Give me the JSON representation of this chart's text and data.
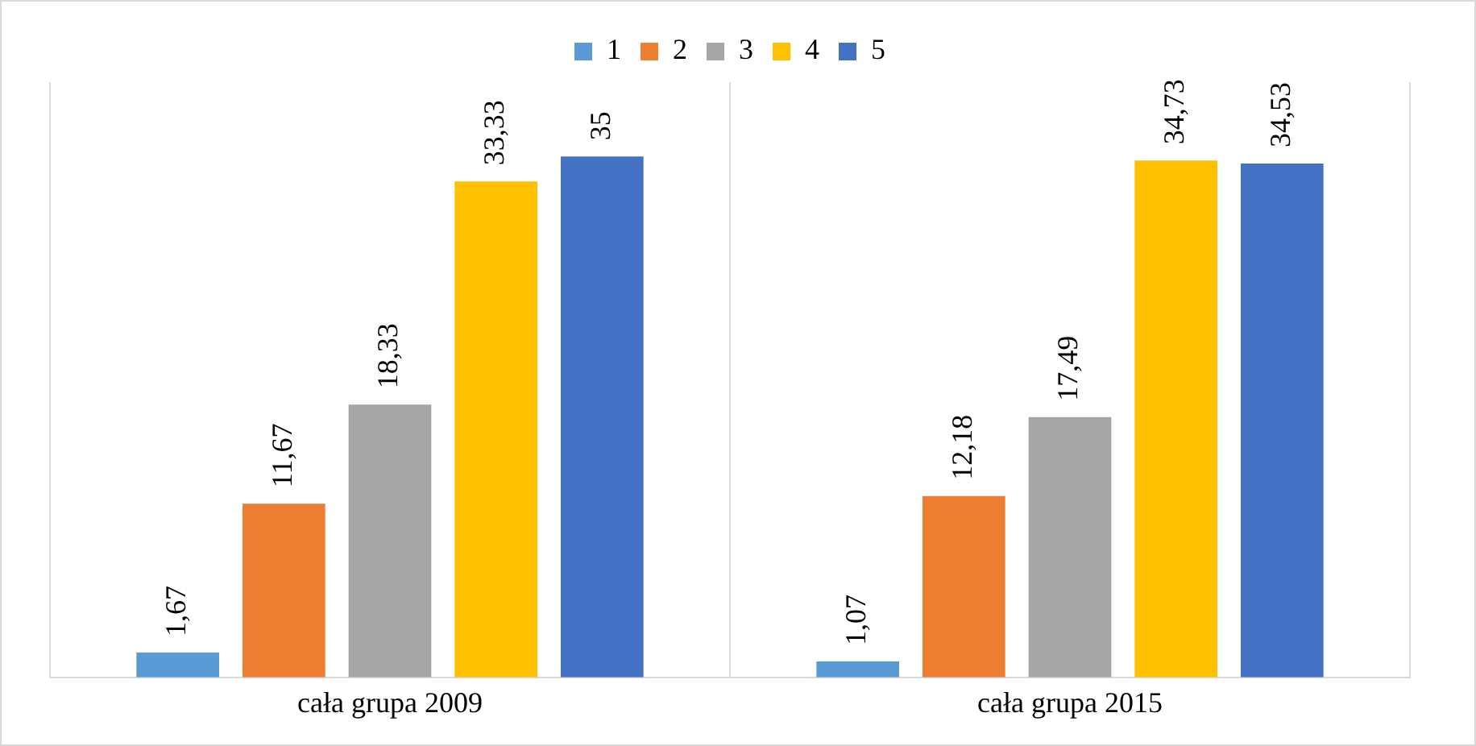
{
  "chart_data": {
    "type": "bar",
    "categories": [
      "cała grupa 2009",
      "cała grupa 2015"
    ],
    "series": [
      {
        "name": "1",
        "color": "#5b9bd5",
        "values": [
          1.67,
          1.07
        ],
        "value_labels": [
          "1,67",
          "1,07"
        ]
      },
      {
        "name": "2",
        "color": "#ed7d31",
        "values": [
          11.67,
          12.18
        ],
        "value_labels": [
          "11,67",
          "12,18"
        ]
      },
      {
        "name": "3",
        "color": "#a5a5a5",
        "values": [
          18.33,
          17.49
        ],
        "value_labels": [
          "18,33",
          "17,49"
        ]
      },
      {
        "name": "4",
        "color": "#ffc000",
        "values": [
          33.33,
          34.73
        ],
        "value_labels": [
          "33,33",
          "34,73"
        ]
      },
      {
        "name": "5",
        "color": "#4472c4",
        "values": [
          35,
          34.53
        ],
        "value_labels": [
          "35",
          "34,53"
        ]
      }
    ],
    "legend": "top",
    "grid": "x",
    "tick_labels": "x"
  }
}
